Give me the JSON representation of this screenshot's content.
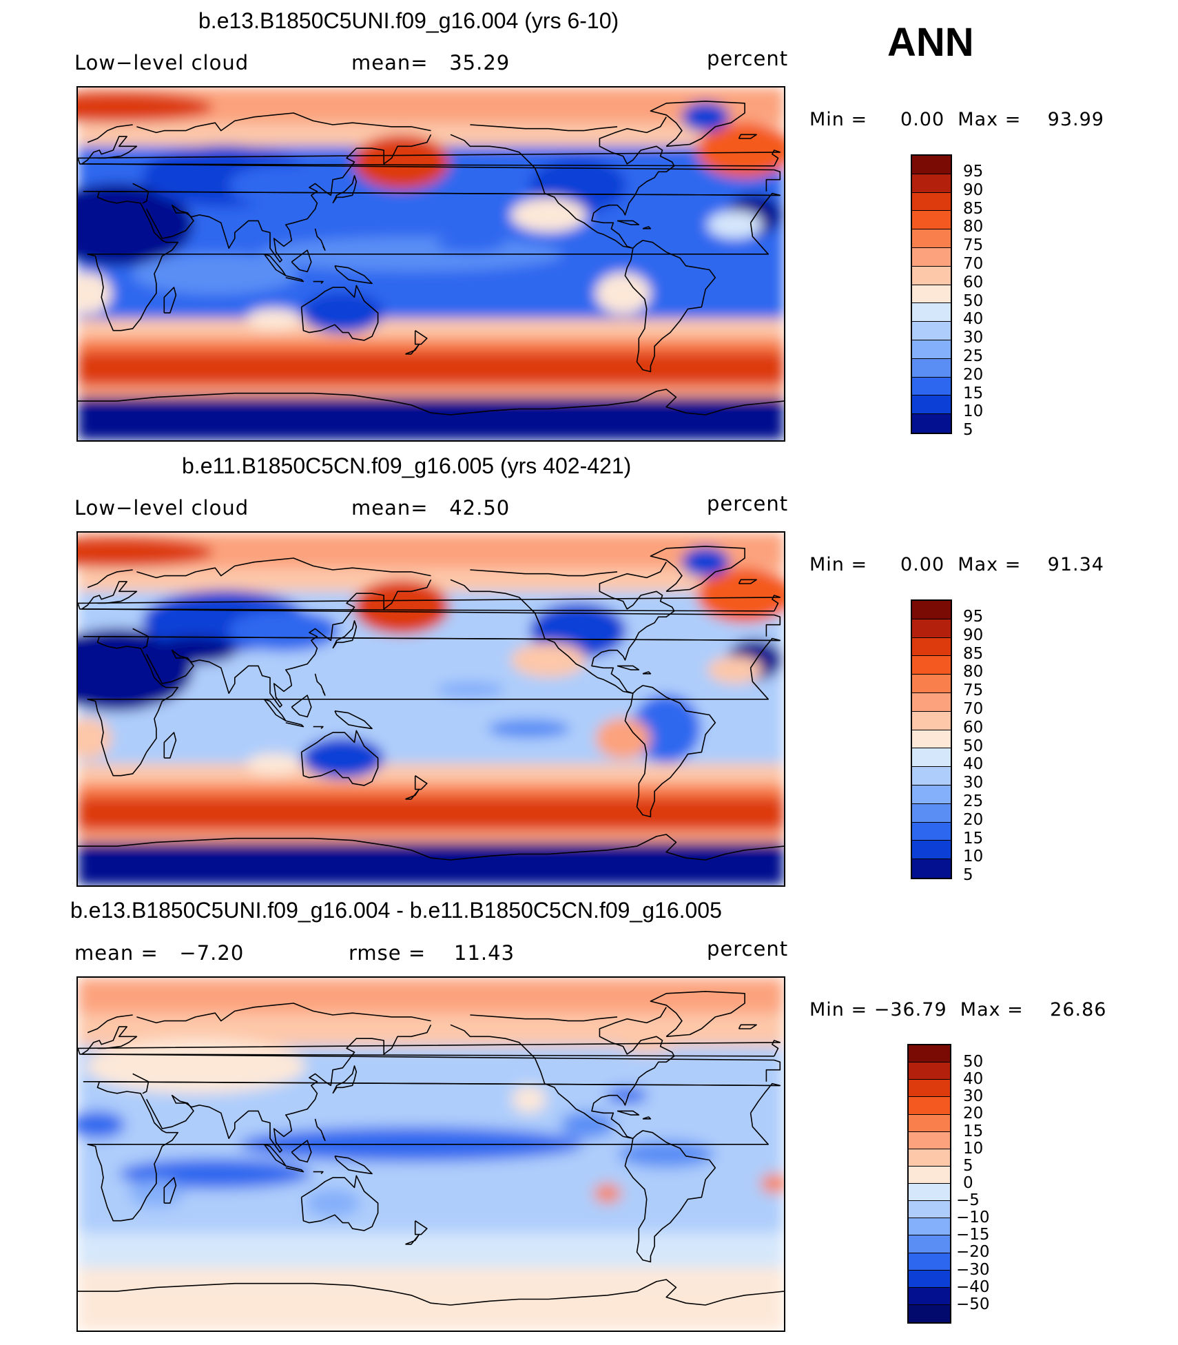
{
  "season": "ANN",
  "panels": [
    {
      "title": "b.e13.B1850C5UNI.f09_g16.004 (yrs 6-10)",
      "left_label": "Low−level cloud",
      "mid_label": "mean=   35.29",
      "right_label": "percent",
      "minmax": "Min =     0.00  Max =    93.99",
      "colorbar_labels": [
        "95",
        "90",
        "85",
        "80",
        "75",
        "70",
        "60",
        "50",
        "40",
        "30",
        "25",
        "20",
        "15",
        "10",
        "5"
      ],
      "colorbar_colors": [
        "#7a0a04",
        "#b3200c",
        "#dd3a0e",
        "#f45a1f",
        "#f97f4c",
        "#fca37d",
        "#fdc7a9",
        "#fde8d8",
        "#d5e7fb",
        "#aecdfb",
        "#84affa",
        "#5a8ef5",
        "#2e67ef",
        "#0c3fd6",
        "#03108f"
      ],
      "pattern": "model"
    },
    {
      "title": "b.e11.B1850C5CN.f09_g16.005 (yrs 402-421)",
      "left_label": "Low−level cloud",
      "mid_label": "mean=   42.50",
      "right_label": "percent",
      "minmax": "Min =     0.00  Max =    91.34",
      "colorbar_labels": [
        "95",
        "90",
        "85",
        "80",
        "75",
        "70",
        "60",
        "50",
        "40",
        "30",
        "25",
        "20",
        "15",
        "10",
        "5"
      ],
      "colorbar_colors": [
        "#7a0a04",
        "#b3200c",
        "#dd3a0e",
        "#f45a1f",
        "#f97f4c",
        "#fca37d",
        "#fdc7a9",
        "#fde8d8",
        "#d5e7fb",
        "#aecdfb",
        "#84affa",
        "#5a8ef5",
        "#2e67ef",
        "#0c3fd6",
        "#03108f"
      ],
      "pattern": "control"
    },
    {
      "title": "b.e13.B1850C5UNI.f09_g16.004 - b.e11.B1850C5CN.f09_g16.005",
      "left_label": "mean =   −7.20",
      "mid_label": "rmse =    11.43",
      "right_label": "percent",
      "minmax": "Min = −36.79  Max =    26.86",
      "colorbar_labels": [
        "50",
        "40",
        "30",
        "20",
        "15",
        "10",
        "5",
        "0",
        "−5",
        "−10",
        "−15",
        "−20",
        "−30",
        "−40",
        "−50"
      ],
      "colorbar_colors": [
        "#7a0a04",
        "#b3200c",
        "#dd3a0e",
        "#f45a1f",
        "#f97f4c",
        "#fca37d",
        "#fdc7a9",
        "#fde8d8",
        "#d5e7fb",
        "#aecdfb",
        "#84affa",
        "#5a8ef5",
        "#2e67ef",
        "#0c3fd6",
        "#03108f",
        "#020a6e"
      ],
      "pattern": "diff"
    }
  ]
}
